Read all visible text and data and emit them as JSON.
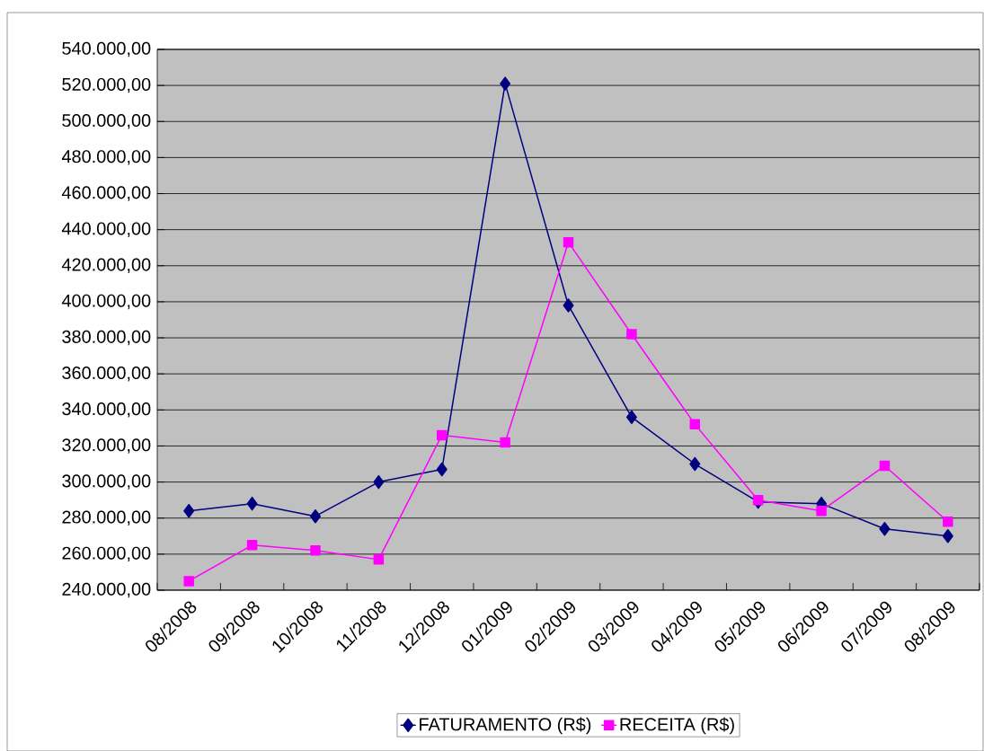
{
  "chart_data": {
    "type": "line",
    "categories": [
      "08/2008",
      "09/2008",
      "10/2008",
      "11/2008",
      "12/2008",
      "01/2009",
      "02/2009",
      "03/2009",
      "04/2009",
      "05/2009",
      "06/2009",
      "07/2009",
      "08/2009"
    ],
    "series": [
      {
        "name": "FATURAMENTO (R$)",
        "color": "#000080",
        "marker": "diamond",
        "values": [
          284000,
          288000,
          281000,
          300000,
          307000,
          521000,
          398000,
          336000,
          310000,
          289000,
          288000,
          274000,
          270000
        ]
      },
      {
        "name": "RECEITA (R$)",
        "color": "#ff00ff",
        "marker": "square",
        "values": [
          245000,
          265000,
          262000,
          257000,
          326000,
          322000,
          433000,
          382000,
          332000,
          290000,
          284000,
          309000,
          278000
        ]
      }
    ],
    "ylim": [
      240000,
      540000
    ],
    "yticks": [
      {
        "value": 240000,
        "label": "240.000,00"
      },
      {
        "value": 260000,
        "label": "260.000,00"
      },
      {
        "value": 280000,
        "label": "280.000,00"
      },
      {
        "value": 300000,
        "label": "300.000,00"
      },
      {
        "value": 320000,
        "label": "320.000,00"
      },
      {
        "value": 340000,
        "label": "340.000,00"
      },
      {
        "value": 360000,
        "label": "360.000,00"
      },
      {
        "value": 380000,
        "label": "380.000,00"
      },
      {
        "value": 400000,
        "label": "400.000,00"
      },
      {
        "value": 420000,
        "label": "420.000,00"
      },
      {
        "value": 440000,
        "label": "440.000,00"
      },
      {
        "value": 460000,
        "label": "460.000,00"
      },
      {
        "value": 480000,
        "label": "480.000,00"
      },
      {
        "value": 500000,
        "label": "500.000,00"
      },
      {
        "value": 520000,
        "label": "520.000,00"
      },
      {
        "value": 540000,
        "label": "540.000,00"
      }
    ],
    "grid": "y",
    "legend": "bottom",
    "line_style": "solid"
  }
}
